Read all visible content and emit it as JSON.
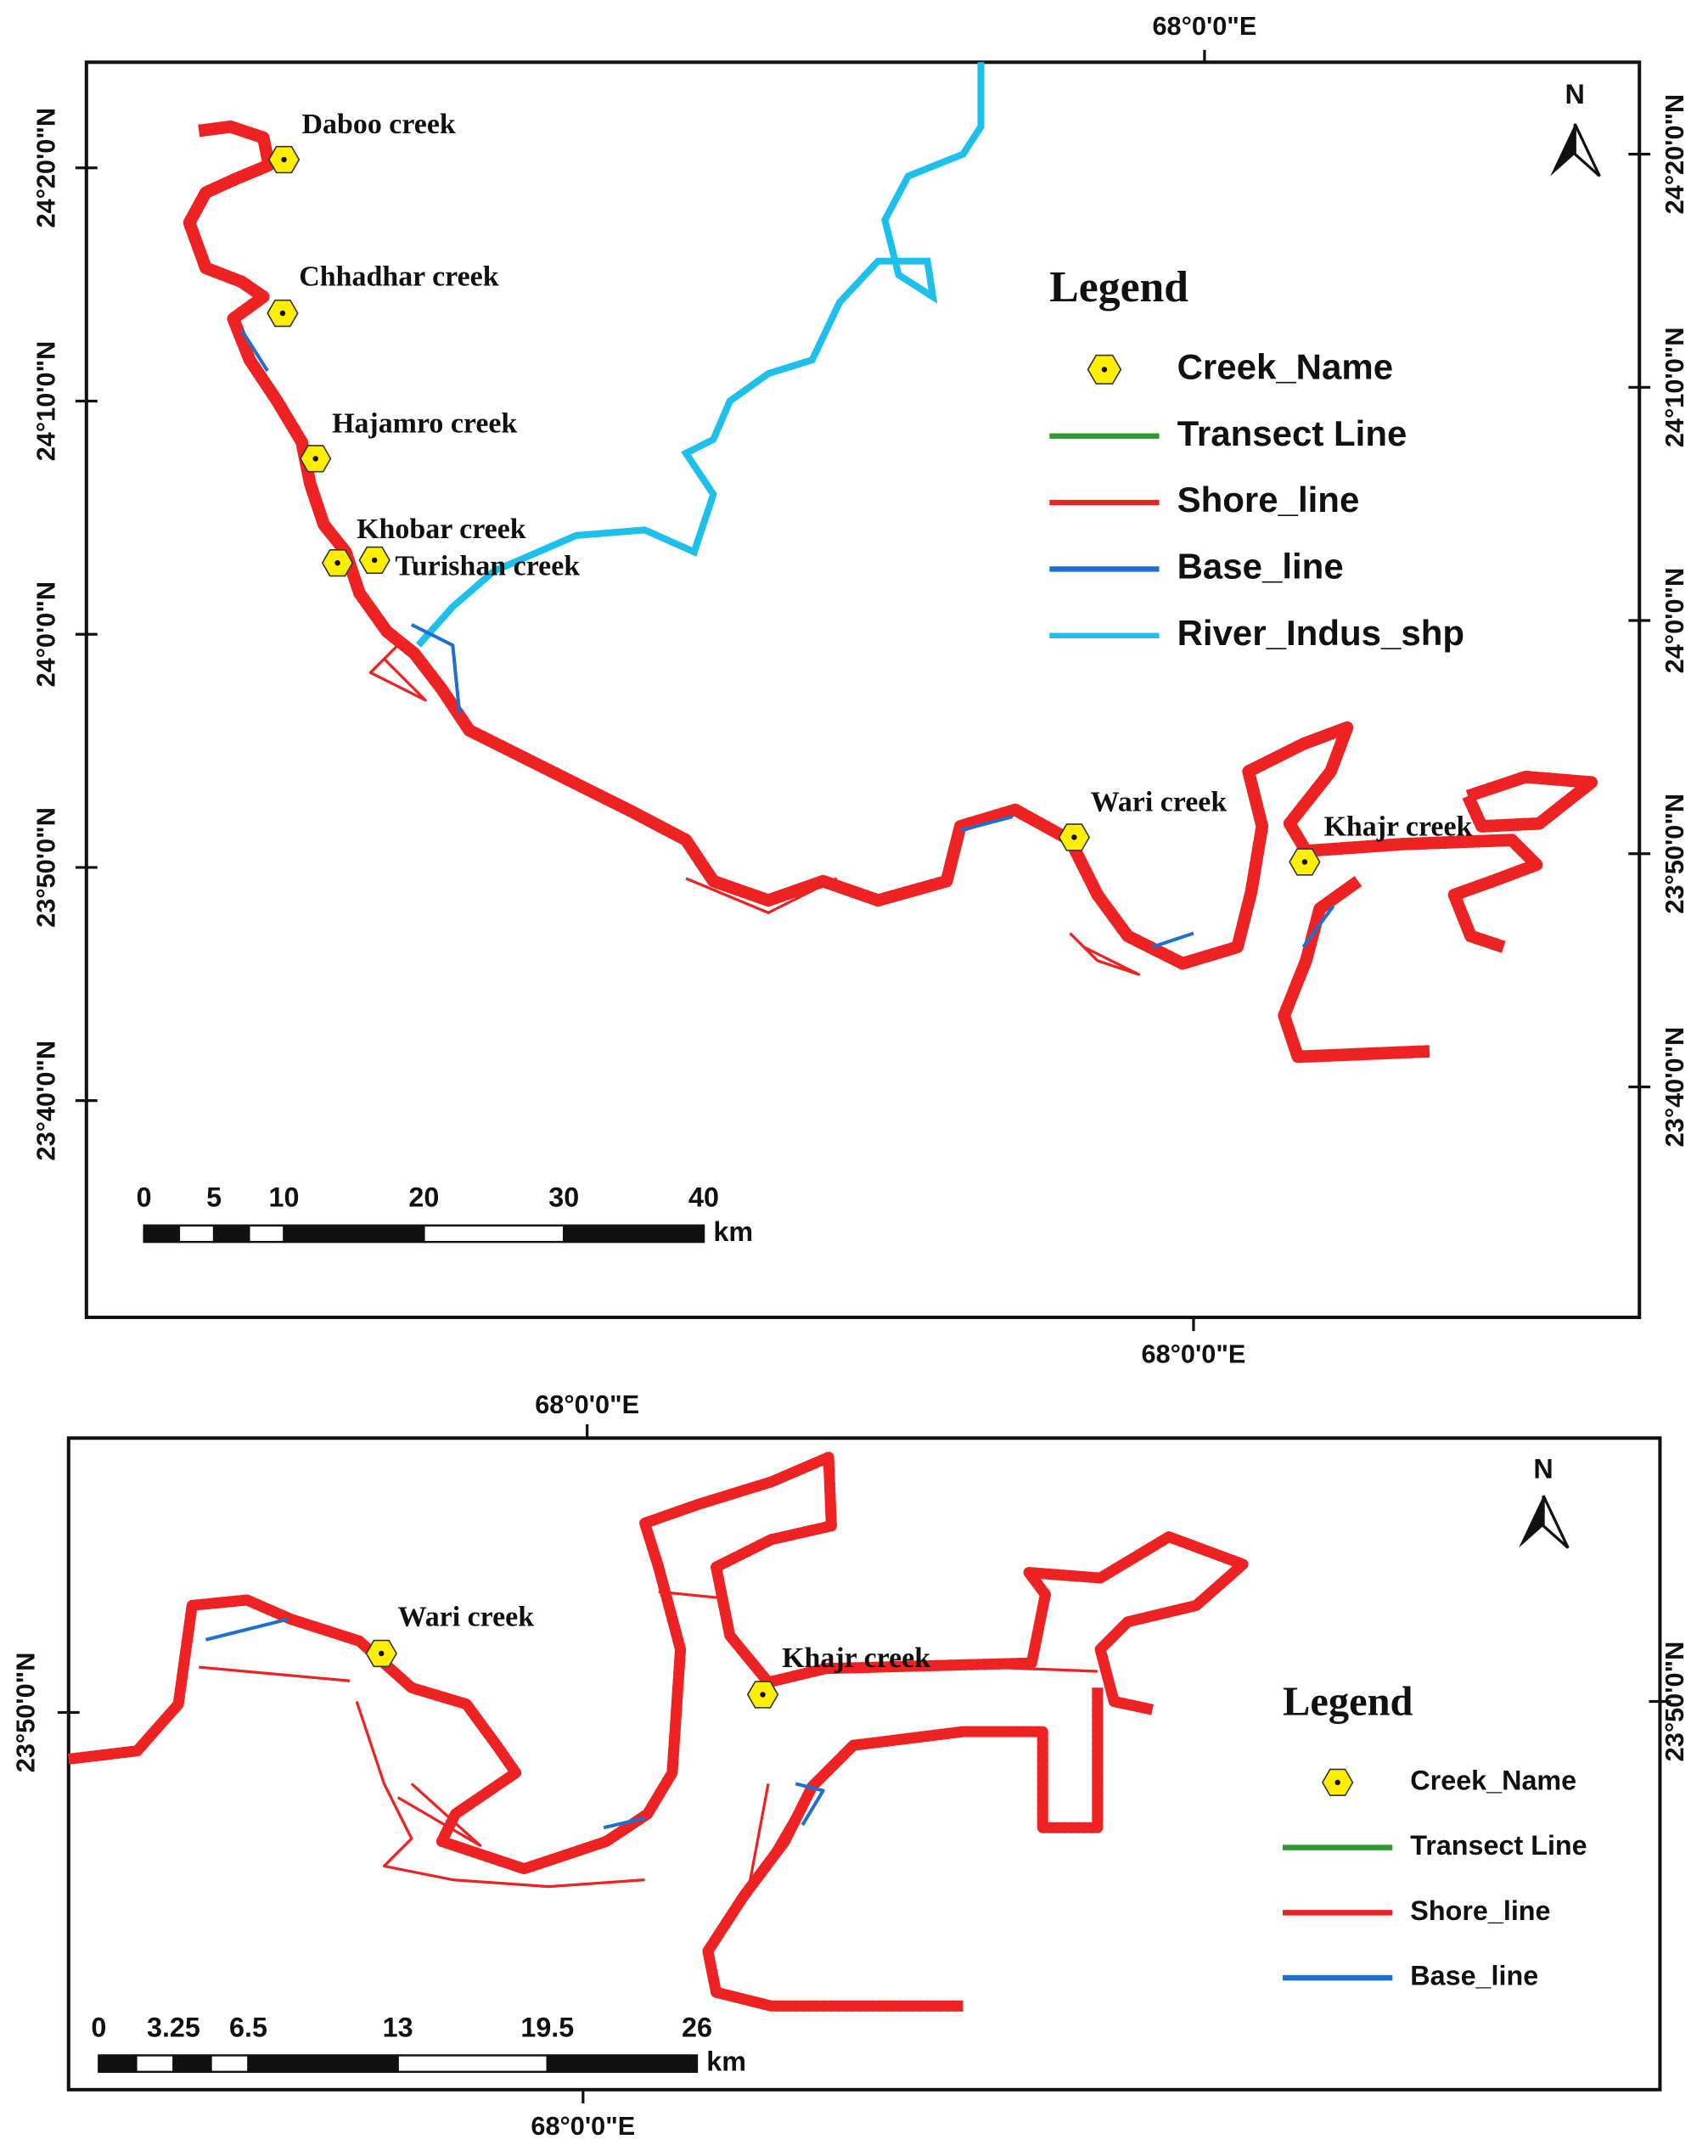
{
  "map1": {
    "top": [
      "68°0'0\"E"
    ],
    "bottom": [
      "68°0'0\"E"
    ],
    "left": [
      "24°20'0\"N",
      "24°10'0\"N",
      "24°0'0\"N",
      "23°50'0\"N",
      "23°40'0\"N"
    ],
    "right": [
      "24°20'0\"N",
      "24°10'0\"N",
      "24°0'0\"N",
      "23°50'0\"N",
      "23°40'0\"N"
    ],
    "creeks": [
      "Daboo creek",
      "Chhadhar creek",
      "Hajamro creek",
      "Khobar creek",
      "Turishan creek",
      "Wari creek",
      "Khajr creek"
    ],
    "north": "N",
    "legend": {
      "title": "Legend",
      "items": [
        {
          "name": "Creek_Name",
          "color": "#ffee00"
        },
        {
          "name": "Transect Line",
          "color": "#2e9a2e"
        },
        {
          "name": "Shore_line",
          "color": "#ee2222"
        },
        {
          "name": "Base_line",
          "color": "#1f6fd0"
        },
        {
          "name": "River_Indus_shp",
          "color": "#1cc0ea"
        }
      ]
    },
    "scale": {
      "ticks": [
        0,
        5,
        10,
        20,
        30,
        40
      ],
      "unit": "km"
    }
  },
  "map2": {
    "top": [
      "68°0'0\"E"
    ],
    "bottom": [
      "68°0'0\"E"
    ],
    "left": [
      "23°50'0\"N"
    ],
    "right": [
      "23°50'0\"N"
    ],
    "creeks": [
      "Wari creek",
      "Khajr creek"
    ],
    "north": "N",
    "legend": {
      "title": "Legend",
      "items": [
        {
          "name": "Creek_Name",
          "color": "#ffee00"
        },
        {
          "name": "Transect Line",
          "color": "#2e9a2e"
        },
        {
          "name": "Shore_line",
          "color": "#ee2222"
        },
        {
          "name": "Base_line",
          "color": "#1f6fd0"
        }
      ]
    },
    "scale": {
      "ticks": [
        0,
        3.25,
        6.5,
        13,
        19.5,
        26
      ],
      "unit": "km"
    }
  }
}
